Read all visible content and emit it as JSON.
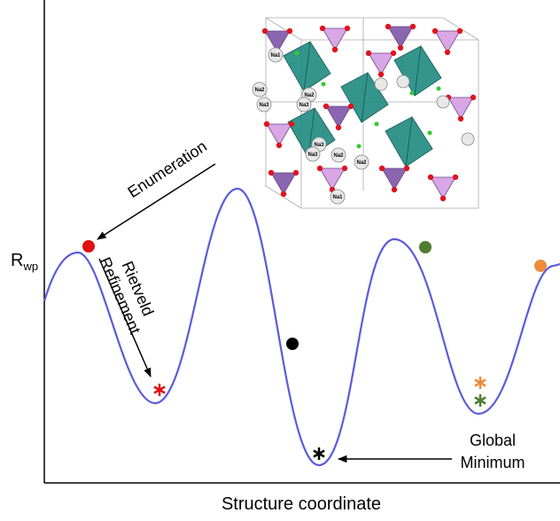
{
  "axes": {
    "y_label": "R",
    "y_label_sub": "wp",
    "x_label": "Structure coordinate"
  },
  "annotations": {
    "enumeration": "Enumeration",
    "rietveld": [
      "Rietveld",
      "Refinement"
    ],
    "global_minimum": [
      "Global",
      "Minimum"
    ]
  },
  "structure_labels": [
    "Na1",
    "Na2",
    "Na2",
    "Na3",
    "Na3",
    "Na3",
    "Na3",
    "Na2",
    "Na2",
    "Na1"
  ]
}
